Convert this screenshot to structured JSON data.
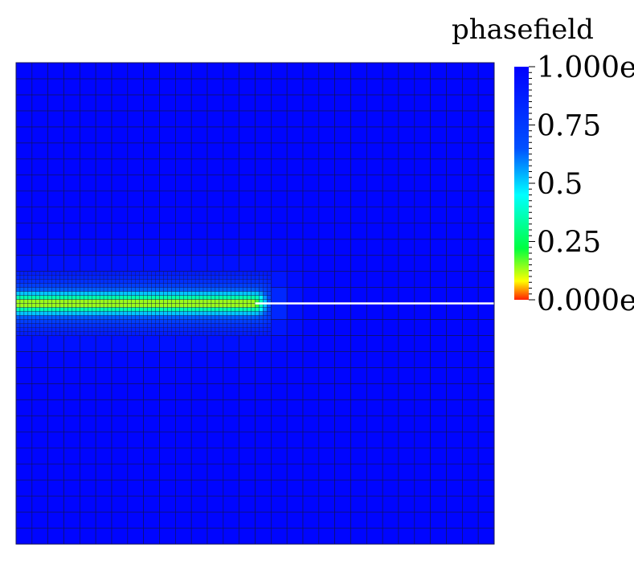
{
  "chart_data": {
    "type": "heatmap",
    "field_name": "phasefield",
    "colorbar": {
      "title": "phasefield",
      "range": [
        0,
        1
      ],
      "ticks": [
        {
          "value": 1.0,
          "label": "1.000e"
        },
        {
          "value": 0.75,
          "label": "0.75"
        },
        {
          "value": 0.5,
          "label": "0.5"
        },
        {
          "value": 0.25,
          "label": "0.25"
        },
        {
          "value": 0.0,
          "label": "0.000e"
        }
      ],
      "colormap": [
        "#ff2000",
        "#ffff00",
        "#00ff40",
        "#00ffff",
        "#0050ff",
        "#0000ff"
      ]
    },
    "mesh": {
      "domain": {
        "x": [
          0,
          1
        ],
        "y": [
          0,
          1
        ]
      },
      "coarse_cells": 30,
      "refined_region": {
        "x": [
          0,
          0.53
        ],
        "y": [
          0.42,
          0.58
        ]
      },
      "refinement_level": 2
    },
    "crack": {
      "y": 0.5,
      "x": [
        0,
        0.5
      ],
      "min_value": 0.0
    },
    "notch": {
      "y": 0.5,
      "x": [
        0.5,
        1.0
      ]
    },
    "background_value": 0.98
  }
}
